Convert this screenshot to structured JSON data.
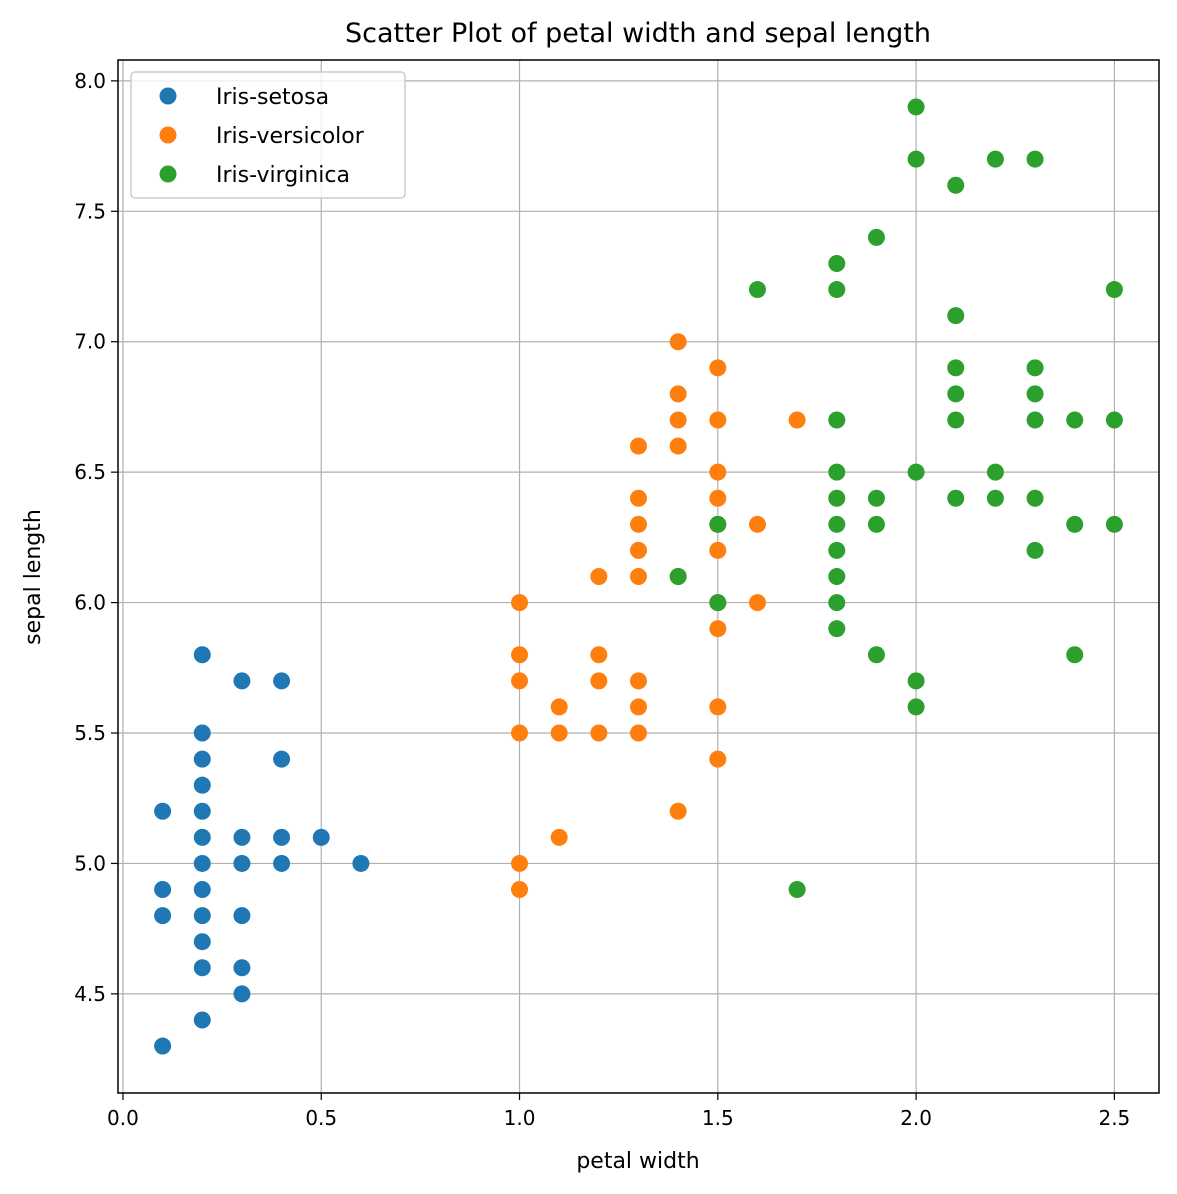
{
  "chart_data": {
    "type": "scatter",
    "title": "Scatter Plot of petal width and sepal length",
    "xlabel": "petal width",
    "ylabel": "sepal length",
    "xlim": [
      -0.0125,
      2.6125
    ],
    "ylim": [
      4.12,
      8.08
    ],
    "xticks": [
      0.0,
      0.5,
      1.0,
      1.5,
      2.0,
      2.5
    ],
    "xtick_labels": [
      "0.0",
      "0.5",
      "1.0",
      "1.5",
      "2.0",
      "2.5"
    ],
    "yticks": [
      4.5,
      5.0,
      5.5,
      6.0,
      6.5,
      7.0,
      7.5,
      8.0
    ],
    "ytick_labels": [
      "4.5",
      "5.0",
      "5.5",
      "6.0",
      "6.5",
      "7.0",
      "7.5",
      "8.0"
    ],
    "grid": true,
    "legend_position": "top-left",
    "series": [
      {
        "name": "Iris-setosa",
        "color": "#1f77b4",
        "points": [
          [
            0.1,
            5.2
          ],
          [
            0.1,
            4.9
          ],
          [
            0.1,
            4.8
          ],
          [
            0.1,
            4.3
          ],
          [
            0.2,
            5.8
          ],
          [
            0.2,
            5.5
          ],
          [
            0.2,
            5.4
          ],
          [
            0.2,
            5.3
          ],
          [
            0.2,
            5.2
          ],
          [
            0.2,
            5.1
          ],
          [
            0.2,
            5.0
          ],
          [
            0.2,
            4.9
          ],
          [
            0.2,
            4.8
          ],
          [
            0.2,
            4.7
          ],
          [
            0.2,
            4.6
          ],
          [
            0.2,
            4.4
          ],
          [
            0.3,
            5.7
          ],
          [
            0.3,
            5.1
          ],
          [
            0.3,
            5.0
          ],
          [
            0.3,
            4.8
          ],
          [
            0.3,
            4.6
          ],
          [
            0.3,
            4.5
          ],
          [
            0.4,
            5.7
          ],
          [
            0.4,
            5.4
          ],
          [
            0.4,
            5.1
          ],
          [
            0.4,
            5.0
          ],
          [
            0.5,
            5.1
          ],
          [
            0.6,
            5.0
          ]
        ]
      },
      {
        "name": "Iris-versicolor",
        "color": "#ff7f0e",
        "points": [
          [
            1.0,
            6.0
          ],
          [
            1.0,
            5.8
          ],
          [
            1.0,
            5.7
          ],
          [
            1.0,
            5.5
          ],
          [
            1.0,
            5.0
          ],
          [
            1.0,
            4.9
          ],
          [
            1.1,
            5.6
          ],
          [
            1.1,
            5.5
          ],
          [
            1.1,
            5.1
          ],
          [
            1.2,
            6.1
          ],
          [
            1.2,
            5.8
          ],
          [
            1.2,
            5.7
          ],
          [
            1.2,
            5.5
          ],
          [
            1.3,
            6.6
          ],
          [
            1.3,
            6.4
          ],
          [
            1.3,
            6.3
          ],
          [
            1.3,
            6.2
          ],
          [
            1.3,
            6.1
          ],
          [
            1.3,
            5.7
          ],
          [
            1.3,
            5.6
          ],
          [
            1.3,
            5.5
          ],
          [
            1.4,
            7.0
          ],
          [
            1.4,
            6.8
          ],
          [
            1.4,
            6.7
          ],
          [
            1.4,
            6.6
          ],
          [
            1.4,
            6.1
          ],
          [
            1.4,
            5.2
          ],
          [
            1.5,
            6.9
          ],
          [
            1.5,
            6.7
          ],
          [
            1.5,
            6.5
          ],
          [
            1.5,
            6.4
          ],
          [
            1.5,
            6.3
          ],
          [
            1.5,
            6.2
          ],
          [
            1.5,
            6.0
          ],
          [
            1.5,
            5.9
          ],
          [
            1.5,
            5.6
          ],
          [
            1.5,
            5.4
          ],
          [
            1.6,
            6.3
          ],
          [
            1.6,
            6.0
          ],
          [
            1.7,
            6.7
          ]
        ]
      },
      {
        "name": "Iris-virginica",
        "color": "#2ca02c",
        "points": [
          [
            1.4,
            6.1
          ],
          [
            1.5,
            6.3
          ],
          [
            1.5,
            6.0
          ],
          [
            1.6,
            7.2
          ],
          [
            1.7,
            4.9
          ],
          [
            1.8,
            7.3
          ],
          [
            1.8,
            7.2
          ],
          [
            1.8,
            6.7
          ],
          [
            1.8,
            6.5
          ],
          [
            1.8,
            6.4
          ],
          [
            1.8,
            6.3
          ],
          [
            1.8,
            6.2
          ],
          [
            1.8,
            6.1
          ],
          [
            1.8,
            6.0
          ],
          [
            1.8,
            5.9
          ],
          [
            1.9,
            7.4
          ],
          [
            1.9,
            6.4
          ],
          [
            1.9,
            6.3
          ],
          [
            1.9,
            5.8
          ],
          [
            2.0,
            7.9
          ],
          [
            2.0,
            7.7
          ],
          [
            2.0,
            6.5
          ],
          [
            2.0,
            5.7
          ],
          [
            2.0,
            5.6
          ],
          [
            2.1,
            7.6
          ],
          [
            2.1,
            7.1
          ],
          [
            2.1,
            6.9
          ],
          [
            2.1,
            6.8
          ],
          [
            2.1,
            6.7
          ],
          [
            2.1,
            6.4
          ],
          [
            2.2,
            7.7
          ],
          [
            2.2,
            6.5
          ],
          [
            2.2,
            6.4
          ],
          [
            2.3,
            7.7
          ],
          [
            2.3,
            6.9
          ],
          [
            2.3,
            6.8
          ],
          [
            2.3,
            6.7
          ],
          [
            2.3,
            6.4
          ],
          [
            2.3,
            6.2
          ],
          [
            2.4,
            6.7
          ],
          [
            2.4,
            6.3
          ],
          [
            2.4,
            5.8
          ],
          [
            2.5,
            7.2
          ],
          [
            2.5,
            6.7
          ],
          [
            2.5,
            6.3
          ]
        ]
      }
    ]
  }
}
